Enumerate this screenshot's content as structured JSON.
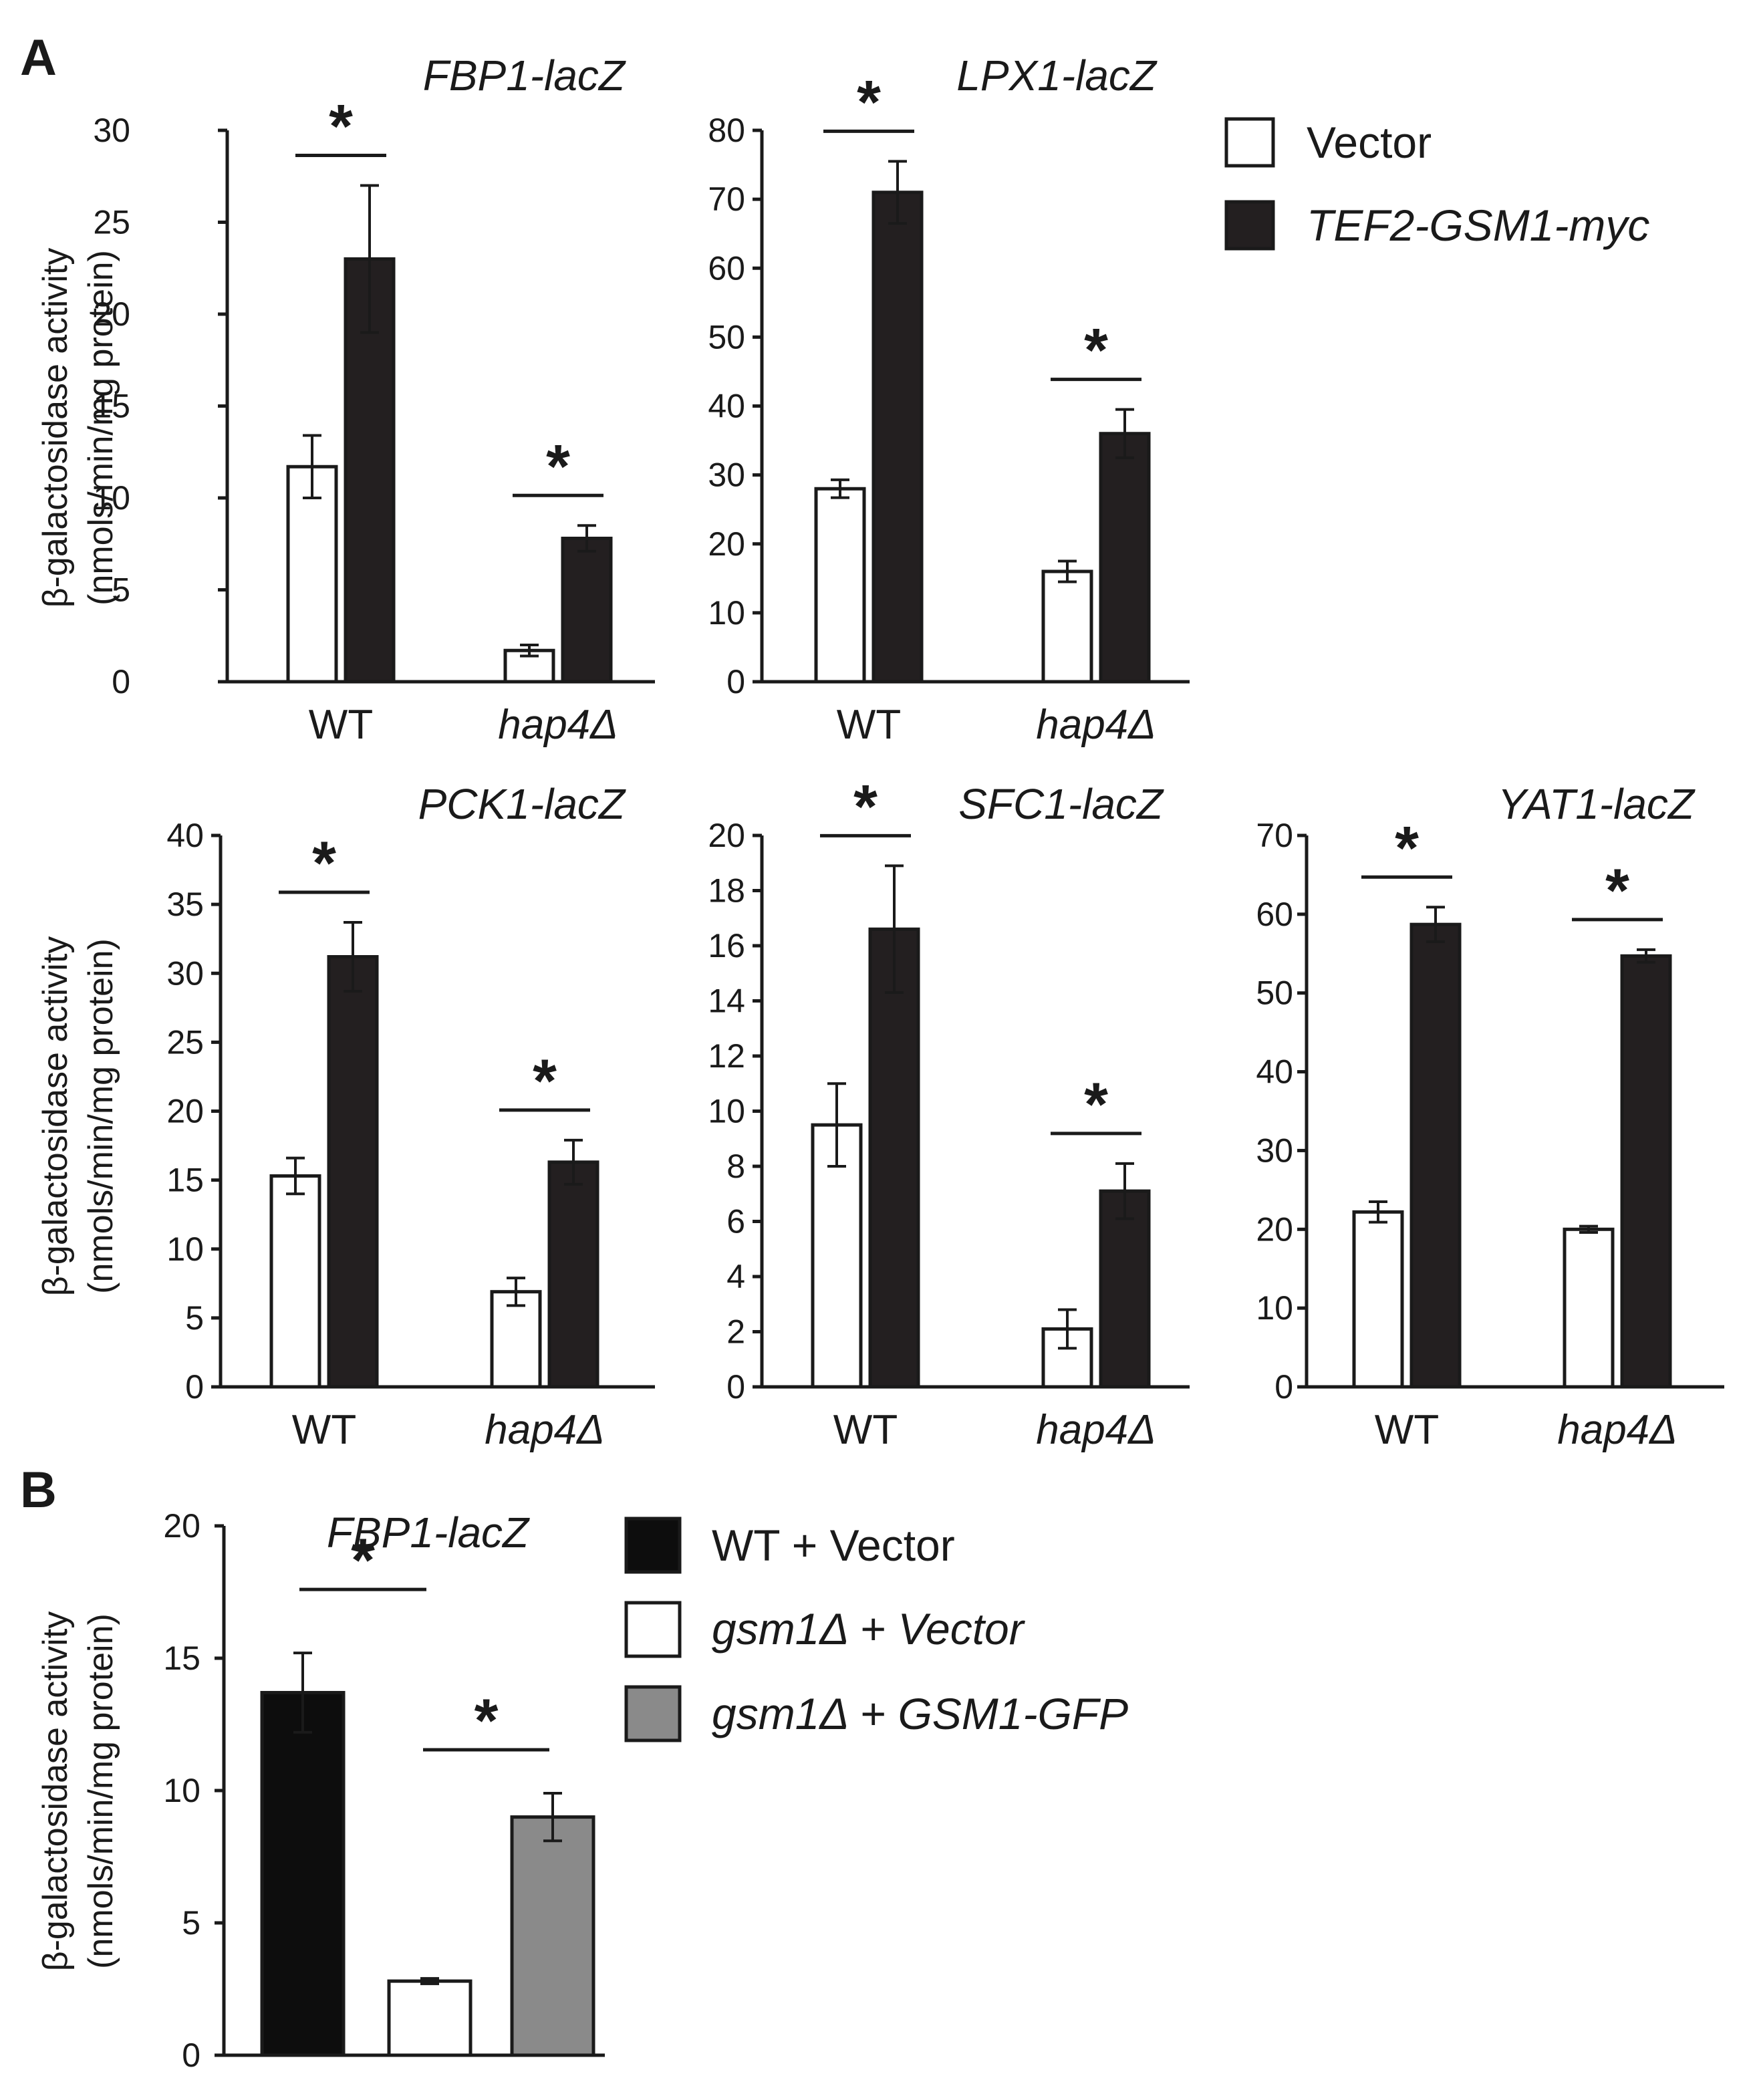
{
  "panel_labels": {
    "a": "A",
    "b": "B"
  },
  "legend_a": [
    {
      "label": "Vector",
      "fill": "#ffffff"
    },
    {
      "label": "TEF2-GSM1-myc",
      "fill": "#231f20"
    }
  ],
  "legend_b": [
    {
      "label": "WT + Vector",
      "fill": "#0d0d0d"
    },
    {
      "label": "gsm1Δ + Vector",
      "fill": "#ffffff"
    },
    {
      "label": "gsm1Δ + GSM1-GFP",
      "fill": "#8a8a8a"
    }
  ],
  "chart_data": [
    {
      "type": "bar",
      "panel": "A",
      "title": "FBP1-lacZ",
      "ylabel": [
        "β-galactosidase activity",
        "(nmols/min/mg protein)"
      ],
      "categories": [
        "WT",
        "hap4Δ"
      ],
      "ylim": [
        0,
        30
      ],
      "yticks": [
        0,
        5,
        10,
        15,
        20,
        25,
        30
      ],
      "series": [
        {
          "name": "Vector",
          "values": [
            11.7,
            1.7
          ],
          "errors": [
            1.7,
            0.3
          ]
        },
        {
          "name": "TEF2-GSM1-myc",
          "values": [
            23.0,
            7.8
          ],
          "errors": [
            4.0,
            0.7
          ]
        }
      ],
      "significance": [
        "*",
        "*"
      ]
    },
    {
      "type": "bar",
      "panel": "A",
      "title": "LPX1-lacZ",
      "ylabel": [],
      "categories": [
        "WT",
        "hap4Δ"
      ],
      "ylim": [
        0,
        80
      ],
      "yticks": [
        0,
        10,
        20,
        30,
        40,
        50,
        60,
        70,
        80
      ],
      "series": [
        {
          "name": "Vector",
          "values": [
            28,
            16
          ],
          "errors": [
            1.3,
            1.5
          ]
        },
        {
          "name": "TEF2-GSM1-myc",
          "values": [
            71,
            36
          ],
          "errors": [
            4.5,
            3.5
          ]
        }
      ],
      "significance": [
        "*",
        "*"
      ]
    },
    {
      "type": "bar",
      "panel": "A",
      "title": "PCK1-lacZ",
      "ylabel": [
        "β-galactosidase activity",
        "(nmols/min/mg protein)"
      ],
      "categories": [
        "WT",
        "hap4Δ"
      ],
      "ylim": [
        0,
        40
      ],
      "yticks": [
        0,
        5,
        10,
        15,
        20,
        25,
        30,
        35,
        40
      ],
      "series": [
        {
          "name": "Vector",
          "values": [
            15.3,
            6.9
          ],
          "errors": [
            1.3,
            1.0
          ]
        },
        {
          "name": "TEF2-GSM1-myc",
          "values": [
            31.2,
            16.3
          ],
          "errors": [
            2.5,
            1.6
          ]
        }
      ],
      "significance": [
        "*",
        "*"
      ]
    },
    {
      "type": "bar",
      "panel": "A",
      "title": "SFC1-lacZ",
      "ylabel": [],
      "categories": [
        "WT",
        "hap4Δ"
      ],
      "ylim": [
        0,
        20
      ],
      "yticks": [
        0,
        2,
        4,
        6,
        8,
        10,
        12,
        14,
        16,
        18,
        20
      ],
      "series": [
        {
          "name": "Vector",
          "values": [
            9.5,
            2.1
          ],
          "errors": [
            1.5,
            0.7
          ]
        },
        {
          "name": "TEF2-GSM1-myc",
          "values": [
            16.6,
            7.1
          ],
          "errors": [
            2.3,
            1.0
          ]
        }
      ],
      "significance": [
        "*",
        "*"
      ]
    },
    {
      "type": "bar",
      "panel": "A",
      "title": "YAT1-lacZ",
      "ylabel": [],
      "categories": [
        "WT",
        "hap4Δ"
      ],
      "ylim": [
        0,
        70
      ],
      "yticks": [
        0,
        10,
        20,
        30,
        40,
        50,
        60,
        70
      ],
      "series": [
        {
          "name": "Vector",
          "values": [
            22.2,
            20.0
          ],
          "errors": [
            1.3,
            0.4
          ]
        },
        {
          "name": "TEF2-GSM1-myc",
          "values": [
            58.7,
            54.7
          ],
          "errors": [
            2.2,
            0.8
          ]
        }
      ],
      "significance": [
        "*",
        "*"
      ]
    },
    {
      "type": "bar",
      "panel": "B",
      "title": "FBP1-lacZ",
      "ylabel": [
        "β-galactosidase activity",
        "(nmols/min/mg protein)"
      ],
      "categories": [
        "WT + Vector",
        "gsm1Δ + Vector",
        "gsm1Δ + GSM1-GFP"
      ],
      "ylim": [
        0,
        20
      ],
      "yticks": [
        0,
        5,
        10,
        15,
        20
      ],
      "values": [
        13.7,
        2.8,
        9.0
      ],
      "errors": [
        1.5,
        0.1,
        0.9
      ],
      "significance": [
        "*",
        "*"
      ]
    }
  ]
}
